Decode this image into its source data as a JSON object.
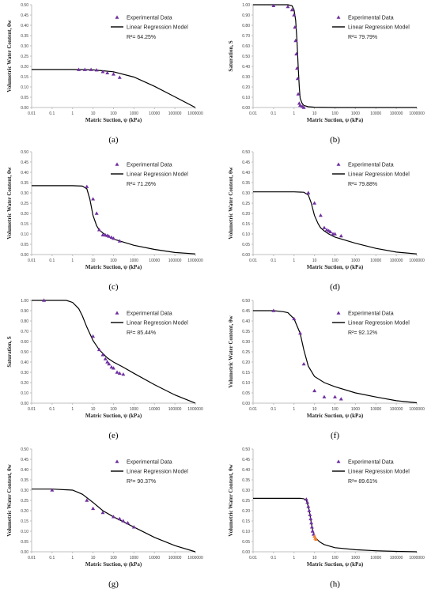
{
  "figure": {
    "x_tick_labels": [
      "0.01",
      "0.1",
      "1",
      "10",
      "100",
      "1000",
      "10000",
      "100000",
      "1000000"
    ],
    "legend_experimental": "Experimental Data",
    "legend_model": "Linear Regression Model",
    "colors": {
      "points": "#7030a0",
      "points_alt": "#ed7d31",
      "line": "#000000",
      "axis": "#bfbfbf"
    }
  },
  "chart_data": [
    {
      "panel_label": "(a)",
      "type": "scatter",
      "xscale": "log",
      "xlabel": "Matric Suction, ψ (kPa)",
      "ylabel": "Volumetric Water Content, θw",
      "xlim": [
        0.01,
        1000000
      ],
      "ylim": [
        0,
        0.5
      ],
      "y_tick_labels": [
        "0.00",
        "0.05",
        "0.10",
        "0.15",
        "0.20",
        "0.25",
        "0.30",
        "0.35",
        "0.40",
        "0.45",
        "0.50"
      ],
      "r2": "R²= 64.25%",
      "experimental": {
        "x": [
          2,
          4,
          8,
          15,
          30,
          50,
          100,
          200
        ],
        "y": [
          0.184,
          0.184,
          0.184,
          0.182,
          0.174,
          0.168,
          0.162,
          0.146
        ]
      },
      "model": {
        "x": [
          0.01,
          1,
          10,
          100,
          1000,
          10000,
          100000,
          1000000
        ],
        "y": [
          0.185,
          0.185,
          0.183,
          0.174,
          0.148,
          0.103,
          0.052,
          0.0
        ]
      }
    },
    {
      "panel_label": "(b)",
      "type": "scatter",
      "xscale": "log",
      "xlabel": "Matric Suction, ψ (kPa)",
      "ylabel": "Saturation, S",
      "xlim": [
        0.01,
        1000000
      ],
      "ylim": [
        0,
        1
      ],
      "y_tick_labels": [
        "0.00",
        "0.10",
        "0.20",
        "0.30",
        "0.40",
        "0.50",
        "0.60",
        "0.70",
        "0.80",
        "0.90",
        "1.00"
      ],
      "r2": "R²= 79.79%",
      "experimental": {
        "x": [
          0.1,
          0.5,
          0.8,
          1.0,
          1.1,
          1.2,
          1.3,
          1.4,
          1.5,
          1.6,
          1.8,
          2,
          2.5,
          3
        ],
        "y": [
          0.99,
          0.98,
          0.95,
          0.9,
          0.78,
          0.65,
          0.52,
          0.38,
          0.28,
          0.13,
          0.04,
          0.02,
          0.01,
          0.0
        ]
      },
      "model": {
        "x": [
          0.01,
          0.5,
          0.8,
          1.0,
          1.2,
          1.4,
          1.6,
          1.8,
          2,
          2.5,
          3,
          5,
          10,
          100,
          1000000
        ],
        "y": [
          1.0,
          1.0,
          0.99,
          0.95,
          0.85,
          0.65,
          0.4,
          0.2,
          0.09,
          0.04,
          0.02,
          0.008,
          0.003,
          0.0,
          0.0
        ]
      }
    },
    {
      "panel_label": "(c)",
      "type": "scatter",
      "xscale": "log",
      "xlabel": "Matric Suction, ψ (kPa)",
      "ylabel": "Volumetric Water Content, θw",
      "xlim": [
        0.01,
        1000000
      ],
      "ylim": [
        0,
        0.5
      ],
      "y_tick_labels": [
        "0.00",
        "0.05",
        "0.10",
        "0.15",
        "0.20",
        "0.25",
        "0.30",
        "0.35",
        "0.40",
        "0.45",
        "0.50"
      ],
      "r2": "R²= 71.26%",
      "experimental": {
        "x": [
          5,
          10,
          15,
          20,
          30,
          40,
          50,
          60,
          80,
          100,
          200
        ],
        "y": [
          0.33,
          0.27,
          0.2,
          0.12,
          0.095,
          0.094,
          0.092,
          0.088,
          0.083,
          0.078,
          0.065
        ]
      },
      "model": {
        "x": [
          0.01,
          1,
          3,
          5,
          7,
          10,
          15,
          20,
          30,
          50,
          100,
          1000,
          10000,
          100000,
          1000000
        ],
        "y": [
          0.335,
          0.335,
          0.333,
          0.32,
          0.27,
          0.19,
          0.14,
          0.12,
          0.105,
          0.09,
          0.075,
          0.045,
          0.025,
          0.01,
          0.003
        ]
      }
    },
    {
      "panel_label": "(d)",
      "type": "scatter",
      "xscale": "log",
      "xlabel": "Matric Suction, ψ (kPa)",
      "ylabel": "Volumetric Water Content, θw",
      "xlim": [
        0.01,
        1000000
      ],
      "ylim": [
        0,
        0.5
      ],
      "y_tick_labels": [
        "0.00",
        "0.05",
        "0.10",
        "0.15",
        "0.20",
        "0.25",
        "0.30",
        "0.35",
        "0.40",
        "0.45",
        "0.50"
      ],
      "r2": "R²= 79.88%",
      "experimental": {
        "x": [
          5,
          10,
          20,
          30,
          40,
          50,
          60,
          80,
          100,
          200
        ],
        "y": [
          0.3,
          0.25,
          0.19,
          0.13,
          0.12,
          0.115,
          0.11,
          0.1,
          0.1,
          0.09
        ]
      },
      "model": {
        "x": [
          0.01,
          1,
          3,
          5,
          7,
          10,
          15,
          20,
          30,
          50,
          100,
          1000,
          10000,
          100000,
          1000000
        ],
        "y": [
          0.305,
          0.305,
          0.303,
          0.29,
          0.25,
          0.19,
          0.15,
          0.13,
          0.115,
          0.1,
          0.085,
          0.055,
          0.03,
          0.012,
          0.003
        ]
      }
    },
    {
      "panel_label": "(e)",
      "type": "scatter",
      "xscale": "log",
      "xlabel": "Matric Suction, ψ (kPa)",
      "ylabel": "Saturation, S",
      "xlim": [
        0.01,
        1000000
      ],
      "ylim": [
        0,
        1
      ],
      "y_tick_labels": [
        "0.00",
        "0.10",
        "0.20",
        "0.30",
        "0.40",
        "0.50",
        "0.60",
        "0.70",
        "0.80",
        "0.90",
        "1.00"
      ],
      "r2": "R²= 85.44%",
      "experimental": {
        "x": [
          0.04,
          10,
          20,
          30,
          40,
          50,
          60,
          80,
          100,
          150,
          200,
          300
        ],
        "y": [
          1.0,
          0.65,
          0.52,
          0.47,
          0.43,
          0.4,
          0.38,
          0.35,
          0.34,
          0.3,
          0.29,
          0.28
        ]
      },
      "model": {
        "x": [
          0.01,
          0.5,
          1,
          2,
          3,
          5,
          10,
          20,
          50,
          100,
          300,
          1000,
          10000,
          100000,
          1000000
        ],
        "y": [
          1.0,
          1.0,
          0.98,
          0.92,
          0.85,
          0.74,
          0.61,
          0.52,
          0.44,
          0.4,
          0.35,
          0.29,
          0.18,
          0.08,
          0.0
        ]
      }
    },
    {
      "panel_label": "(f)",
      "type": "scatter",
      "xscale": "log",
      "xlabel": "Matric Suction, ψ (kPa)",
      "ylabel": "Volumetric Water Content, θw",
      "xlim": [
        0.01,
        1000000
      ],
      "ylim": [
        0,
        0.5
      ],
      "y_tick_labels": [
        "0.00",
        "0.05",
        "0.10",
        "0.15",
        "0.20",
        "0.25",
        "0.30",
        "0.35",
        "0.40",
        "0.45",
        "0.50"
      ],
      "r2": "R²= 92.12%",
      "experimental": {
        "x": [
          0.1,
          1,
          2,
          3,
          10,
          30,
          100,
          200
        ],
        "y": [
          0.45,
          0.41,
          0.34,
          0.19,
          0.06,
          0.03,
          0.03,
          0.02
        ]
      },
      "model": {
        "x": [
          0.01,
          0.1,
          0.3,
          0.5,
          1,
          2,
          3,
          5,
          10,
          30,
          100,
          1000,
          10000,
          100000,
          1000000
        ],
        "y": [
          0.45,
          0.45,
          0.445,
          0.44,
          0.41,
          0.34,
          0.26,
          0.18,
          0.13,
          0.1,
          0.08,
          0.05,
          0.03,
          0.012,
          0.002
        ]
      }
    },
    {
      "panel_label": "(g)",
      "type": "scatter",
      "xscale": "log",
      "xlabel": "Matric Suction, ψ (kPa)",
      "ylabel": "Volumetric Water Content, θw",
      "xlim": [
        0.01,
        1000000
      ],
      "ylim": [
        0,
        0.5
      ],
      "y_tick_labels": [
        "0.00",
        "0.05",
        "0.10",
        "0.15",
        "0.20",
        "0.25",
        "0.30",
        "0.35",
        "0.40",
        "0.45",
        "0.50"
      ],
      "r2": "R²= 90.37%",
      "experimental": {
        "x": [
          0.1,
          5,
          10,
          30,
          100,
          200,
          300,
          500,
          1000
        ],
        "y": [
          0.3,
          0.25,
          0.21,
          0.19,
          0.17,
          0.16,
          0.15,
          0.14,
          0.12
        ]
      },
      "model": {
        "x": [
          0.01,
          0.1,
          1,
          3,
          10,
          30,
          100,
          1000,
          10000,
          100000,
          1000000
        ],
        "y": [
          0.305,
          0.305,
          0.3,
          0.28,
          0.24,
          0.2,
          0.17,
          0.12,
          0.07,
          0.03,
          0.0
        ]
      }
    },
    {
      "panel_label": "(h)",
      "type": "scatter",
      "xscale": "log",
      "xlabel": "Matric Suction, ψ (kPa)",
      "ylabel": "Volumetric Water Content, θw",
      "xlim": [
        0.01,
        1000000
      ],
      "ylim": [
        0,
        0.5
      ],
      "y_tick_labels": [
        "0.00",
        "0.05",
        "0.10",
        "0.15",
        "0.20",
        "0.25",
        "0.30",
        "0.35",
        "0.40",
        "0.45",
        "0.50"
      ],
      "r2": "R²= 89.61%",
      "experimental": {
        "x": [
          4,
          4.5,
          5,
          5.5,
          6,
          6.5,
          7,
          7.5,
          8,
          9,
          10,
          11,
          12
        ],
        "y": [
          0.255,
          0.24,
          0.22,
          0.2,
          0.18,
          0.16,
          0.14,
          0.12,
          0.1,
          0.085,
          0.075,
          0.065,
          0.06
        ]
      },
      "model": {
        "x": [
          0.01,
          1,
          2,
          3,
          4,
          5,
          6,
          7,
          8,
          10,
          12,
          15,
          20,
          30,
          100,
          1000,
          10000,
          100000,
          1000000
        ],
        "y": [
          0.26,
          0.26,
          0.26,
          0.258,
          0.25,
          0.22,
          0.18,
          0.14,
          0.11,
          0.08,
          0.065,
          0.055,
          0.045,
          0.035,
          0.02,
          0.01,
          0.005,
          0.002,
          0.0
        ]
      }
    }
  ]
}
